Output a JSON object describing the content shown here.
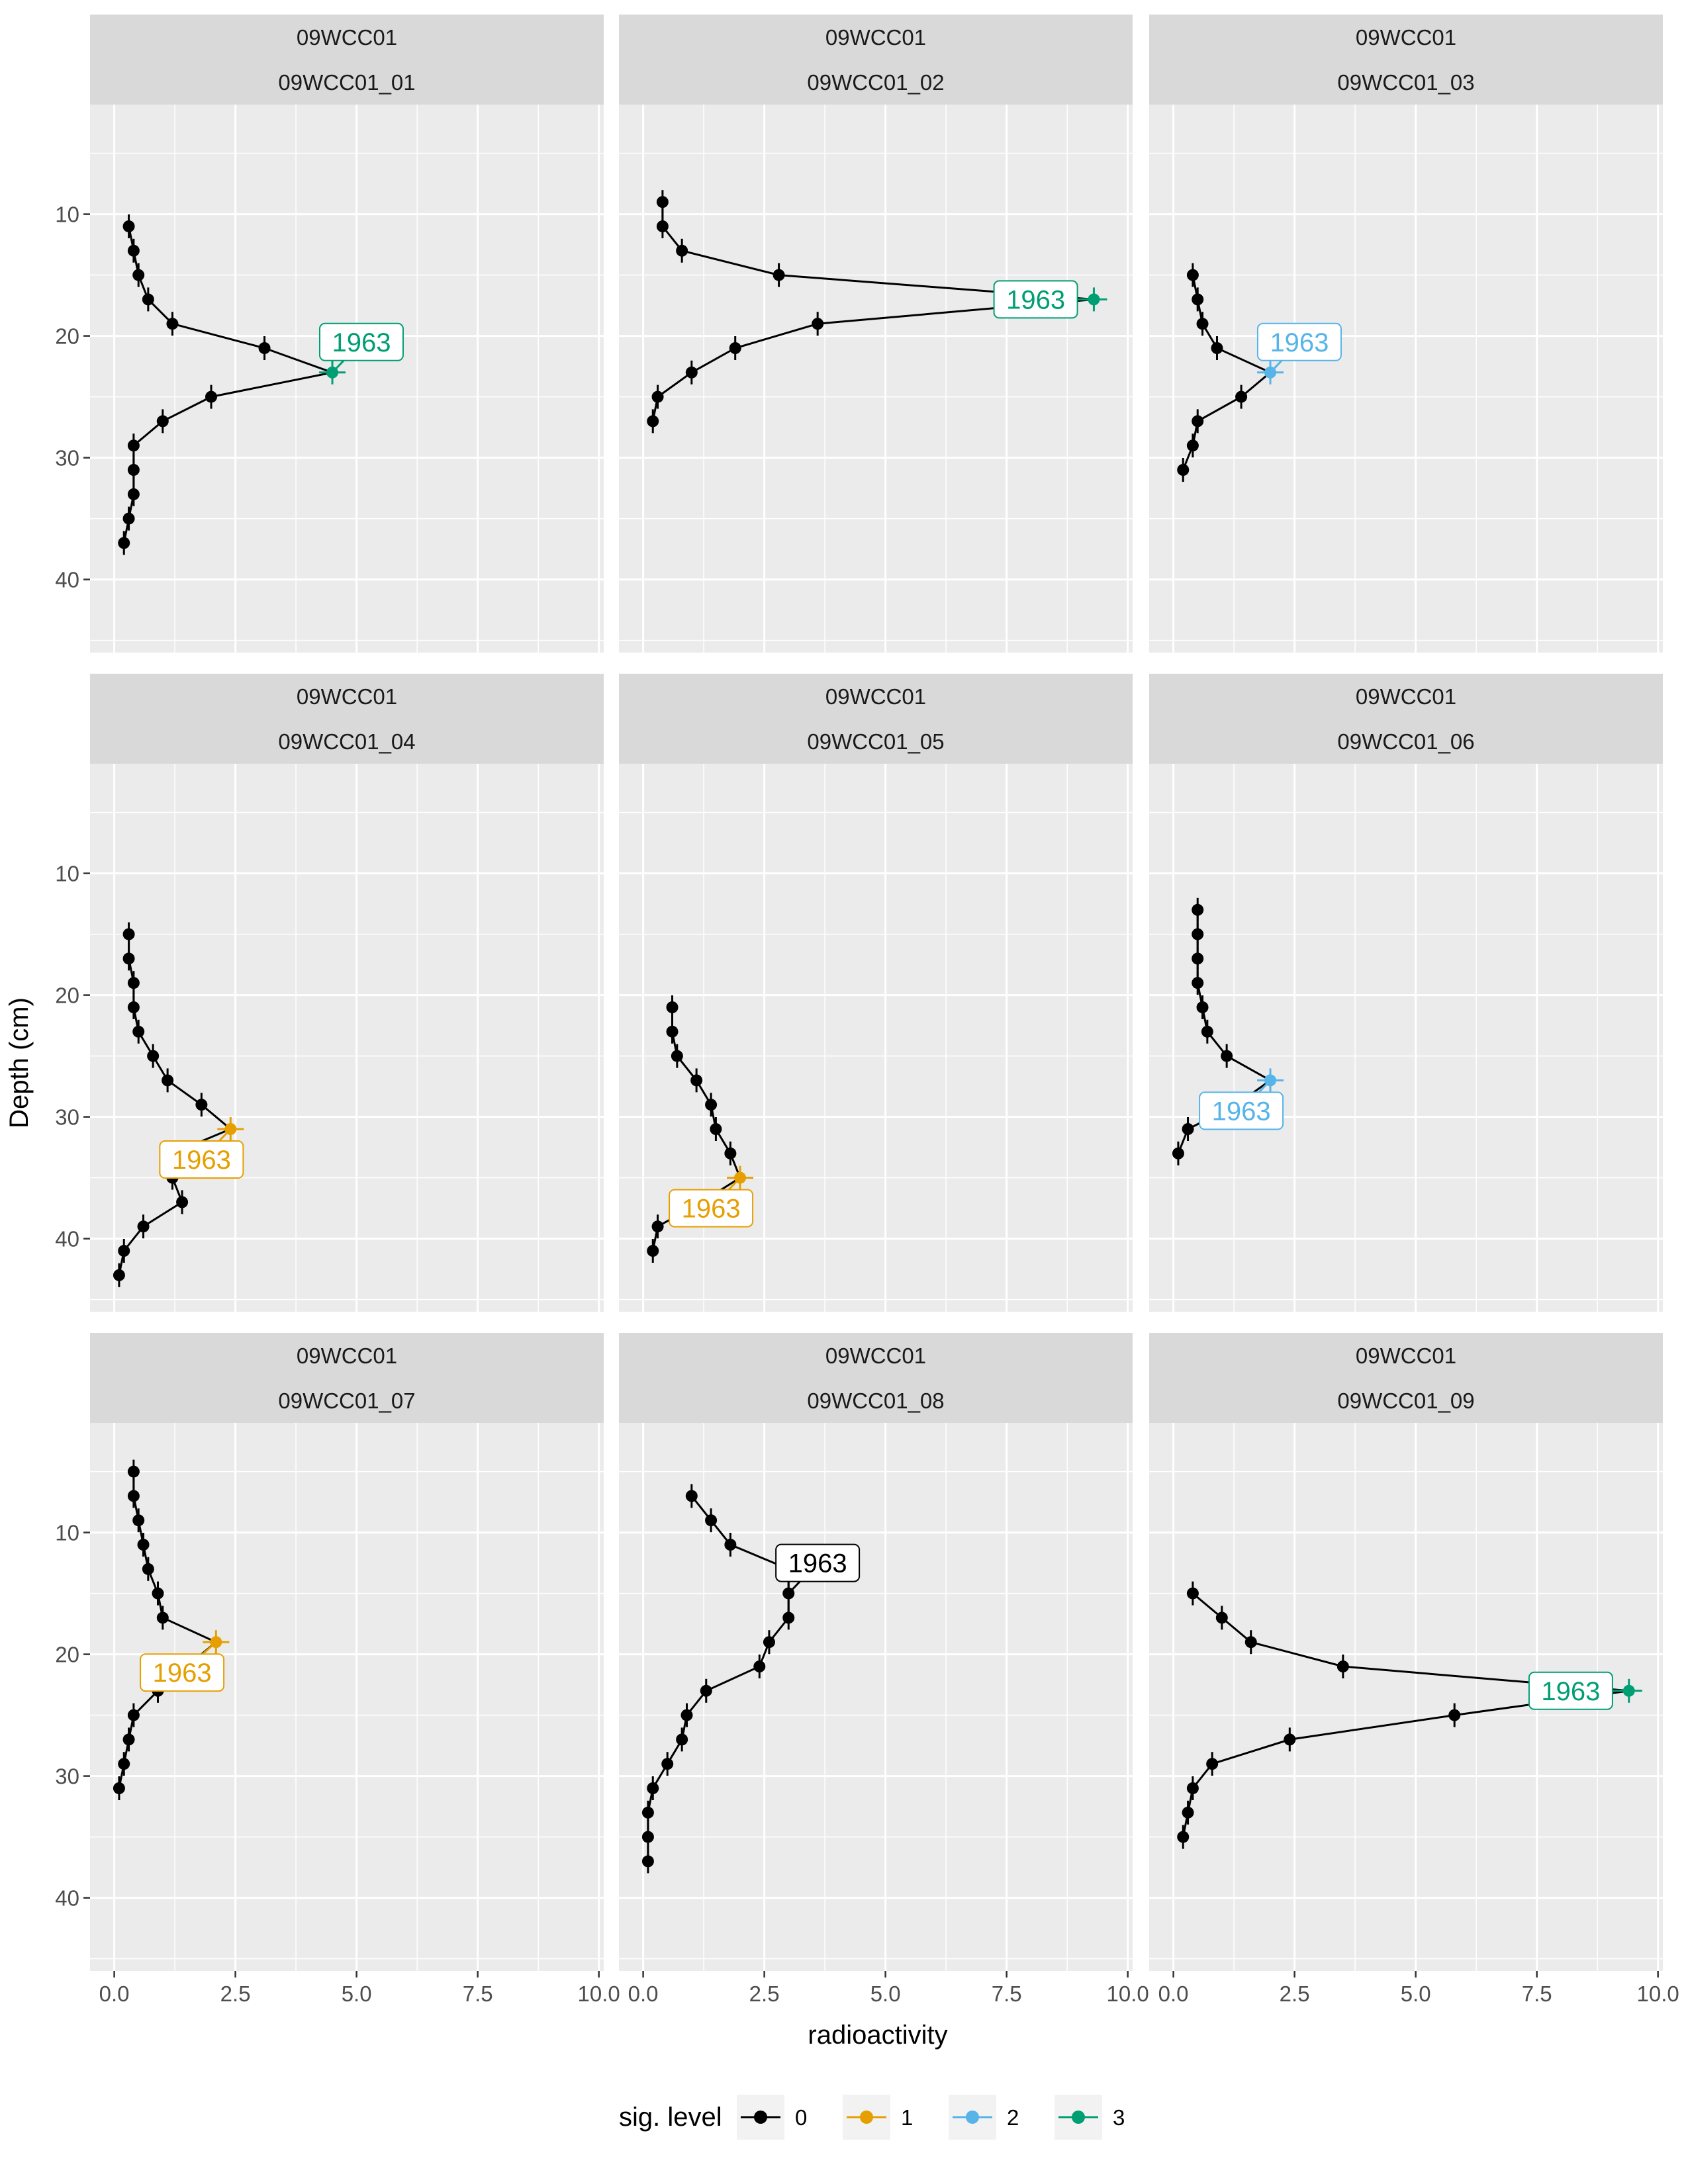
{
  "chart_data": {
    "type": "line",
    "xlabel": "radioactivity",
    "ylabel": "Depth (cm)",
    "xlim": [
      -0.5,
      10.1
    ],
    "ylim": [
      46,
      1
    ],
    "y_reversed": true,
    "xticks": [
      0,
      2.5,
      5,
      7.5,
      10
    ],
    "xtick_labels": [
      "0.0",
      "2.5",
      "5.0",
      "7.5",
      "10.0"
    ],
    "yticks": [
      10,
      20,
      30,
      40
    ],
    "ytick_labels": [
      "10",
      "20",
      "30",
      "40"
    ],
    "grid": true,
    "legend": {
      "title": "sig. level",
      "position": "bottom",
      "levels": [
        "0",
        "1",
        "2",
        "3"
      ]
    },
    "colors": {
      "0": "#000000",
      "1": "#E69F00",
      "2": "#56B4E9",
      "3": "#009E73"
    },
    "panels": [
      {
        "strip_top": "09WCC01",
        "strip_bottom": "09WCC01_01",
        "label": {
          "text": "1963",
          "level": "3",
          "x": 5.1,
          "y": 20.5,
          "point": [
            4.5,
            23
          ]
        },
        "points": [
          {
            "x": 0.3,
            "y": 11,
            "sig": "0"
          },
          {
            "x": 0.4,
            "y": 13,
            "sig": "0"
          },
          {
            "x": 0.5,
            "y": 15,
            "sig": "0"
          },
          {
            "x": 0.7,
            "y": 17,
            "sig": "0"
          },
          {
            "x": 1.2,
            "y": 19,
            "sig": "0"
          },
          {
            "x": 3.1,
            "y": 21,
            "sig": "0"
          },
          {
            "x": 4.5,
            "y": 23,
            "sig": "3"
          },
          {
            "x": 2.0,
            "y": 25,
            "sig": "0"
          },
          {
            "x": 1.0,
            "y": 27,
            "sig": "0"
          },
          {
            "x": 0.4,
            "y": 29,
            "sig": "0"
          },
          {
            "x": 0.4,
            "y": 31,
            "sig": "0"
          },
          {
            "x": 0.4,
            "y": 33,
            "sig": "0"
          },
          {
            "x": 0.3,
            "y": 35,
            "sig": "0"
          },
          {
            "x": 0.2,
            "y": 37,
            "sig": "0"
          }
        ]
      },
      {
        "strip_top": "09WCC01",
        "strip_bottom": "09WCC01_02",
        "label": {
          "text": "1963",
          "level": "3",
          "x": 8.1,
          "y": 17,
          "point": [
            9.3,
            17
          ]
        },
        "points": [
          {
            "x": 0.4,
            "y": 9,
            "sig": "0"
          },
          {
            "x": 0.4,
            "y": 11,
            "sig": "0"
          },
          {
            "x": 0.8,
            "y": 13,
            "sig": "0"
          },
          {
            "x": 2.8,
            "y": 15,
            "sig": "0"
          },
          {
            "x": 9.3,
            "y": 17,
            "sig": "3"
          },
          {
            "x": 3.6,
            "y": 19,
            "sig": "0"
          },
          {
            "x": 1.9,
            "y": 21,
            "sig": "0"
          },
          {
            "x": 1.0,
            "y": 23,
            "sig": "0"
          },
          {
            "x": 0.3,
            "y": 25,
            "sig": "0"
          },
          {
            "x": 0.2,
            "y": 27,
            "sig": "0"
          }
        ]
      },
      {
        "strip_top": "09WCC01",
        "strip_bottom": "09WCC01_03",
        "label": {
          "text": "1963",
          "level": "2",
          "x": 2.6,
          "y": 20.5,
          "point": [
            2.0,
            23
          ]
        },
        "points": [
          {
            "x": 0.4,
            "y": 15,
            "sig": "0"
          },
          {
            "x": 0.5,
            "y": 17,
            "sig": "0"
          },
          {
            "x": 0.6,
            "y": 19,
            "sig": "0"
          },
          {
            "x": 0.9,
            "y": 21,
            "sig": "0"
          },
          {
            "x": 2.0,
            "y": 23,
            "sig": "2"
          },
          {
            "x": 1.4,
            "y": 25,
            "sig": "0"
          },
          {
            "x": 0.5,
            "y": 27,
            "sig": "0"
          },
          {
            "x": 0.4,
            "y": 29,
            "sig": "0"
          },
          {
            "x": 0.2,
            "y": 31,
            "sig": "0"
          }
        ]
      },
      {
        "strip_top": "09WCC01",
        "strip_bottom": "09WCC01_04",
        "label": {
          "text": "1963",
          "level": "1",
          "x": 1.8,
          "y": 33.5,
          "point": [
            2.4,
            31
          ]
        },
        "points": [
          {
            "x": 0.3,
            "y": 15,
            "sig": "0"
          },
          {
            "x": 0.3,
            "y": 17,
            "sig": "0"
          },
          {
            "x": 0.4,
            "y": 19,
            "sig": "0"
          },
          {
            "x": 0.4,
            "y": 21,
            "sig": "0"
          },
          {
            "x": 0.5,
            "y": 23,
            "sig": "0"
          },
          {
            "x": 0.8,
            "y": 25,
            "sig": "0"
          },
          {
            "x": 1.1,
            "y": 27,
            "sig": "0"
          },
          {
            "x": 1.8,
            "y": 29,
            "sig": "0"
          },
          {
            "x": 2.4,
            "y": 31,
            "sig": "1"
          },
          {
            "x": 1.2,
            "y": 33,
            "sig": "0"
          },
          {
            "x": 1.2,
            "y": 35,
            "sig": "0"
          },
          {
            "x": 1.4,
            "y": 37,
            "sig": "0"
          },
          {
            "x": 0.6,
            "y": 39,
            "sig": "0"
          },
          {
            "x": 0.2,
            "y": 41,
            "sig": "0"
          },
          {
            "x": 0.1,
            "y": 43,
            "sig": "0"
          }
        ]
      },
      {
        "strip_top": "09WCC01",
        "strip_bottom": "09WCC01_05",
        "label": {
          "text": "1963",
          "level": "1",
          "x": 1.4,
          "y": 37.5,
          "point": [
            2.0,
            35
          ]
        },
        "points": [
          {
            "x": 0.6,
            "y": 21,
            "sig": "0"
          },
          {
            "x": 0.6,
            "y": 23,
            "sig": "0"
          },
          {
            "x": 0.7,
            "y": 25,
            "sig": "0"
          },
          {
            "x": 1.1,
            "y": 27,
            "sig": "0"
          },
          {
            "x": 1.4,
            "y": 29,
            "sig": "0"
          },
          {
            "x": 1.5,
            "y": 31,
            "sig": "0"
          },
          {
            "x": 1.8,
            "y": 33,
            "sig": "0"
          },
          {
            "x": 2.0,
            "y": 35,
            "sig": "1"
          },
          {
            "x": 1.2,
            "y": 37,
            "sig": "0"
          },
          {
            "x": 0.3,
            "y": 39,
            "sig": "0"
          },
          {
            "x": 0.2,
            "y": 41,
            "sig": "0"
          }
        ]
      },
      {
        "strip_top": "09WCC01",
        "strip_bottom": "09WCC01_06",
        "label": {
          "text": "1963",
          "level": "2",
          "x": 1.4,
          "y": 29.5,
          "point": [
            2.0,
            27
          ]
        },
        "points": [
          {
            "x": 0.5,
            "y": 13,
            "sig": "0"
          },
          {
            "x": 0.5,
            "y": 15,
            "sig": "0"
          },
          {
            "x": 0.5,
            "y": 17,
            "sig": "0"
          },
          {
            "x": 0.5,
            "y": 19,
            "sig": "0"
          },
          {
            "x": 0.6,
            "y": 21,
            "sig": "0"
          },
          {
            "x": 0.7,
            "y": 23,
            "sig": "0"
          },
          {
            "x": 1.1,
            "y": 25,
            "sig": "0"
          },
          {
            "x": 2.0,
            "y": 27,
            "sig": "2"
          },
          {
            "x": 1.3,
            "y": 29,
            "sig": "0"
          },
          {
            "x": 0.3,
            "y": 31,
            "sig": "0"
          },
          {
            "x": 0.1,
            "y": 33,
            "sig": "0"
          }
        ]
      },
      {
        "strip_top": "09WCC01",
        "strip_bottom": "09WCC01_07",
        "label": {
          "text": "1963",
          "level": "1",
          "x": 1.4,
          "y": 21.5,
          "point": [
            2.1,
            19
          ]
        },
        "points": [
          {
            "x": 0.4,
            "y": 5,
            "sig": "0"
          },
          {
            "x": 0.4,
            "y": 7,
            "sig": "0"
          },
          {
            "x": 0.5,
            "y": 9,
            "sig": "0"
          },
          {
            "x": 0.6,
            "y": 11,
            "sig": "0"
          },
          {
            "x": 0.7,
            "y": 13,
            "sig": "0"
          },
          {
            "x": 0.9,
            "y": 15,
            "sig": "0"
          },
          {
            "x": 1.0,
            "y": 17,
            "sig": "0"
          },
          {
            "x": 2.1,
            "y": 19,
            "sig": "1"
          },
          {
            "x": 1.5,
            "y": 21,
            "sig": "0"
          },
          {
            "x": 0.9,
            "y": 23,
            "sig": "0"
          },
          {
            "x": 0.4,
            "y": 25,
            "sig": "0"
          },
          {
            "x": 0.3,
            "y": 27,
            "sig": "0"
          },
          {
            "x": 0.2,
            "y": 29,
            "sig": "0"
          },
          {
            "x": 0.1,
            "y": 31,
            "sig": "0"
          }
        ]
      },
      {
        "strip_top": "09WCC01",
        "strip_bottom": "09WCC01_08",
        "label": {
          "text": "1963",
          "level": "0",
          "x": 3.6,
          "y": 12.5,
          "point": [
            3.0,
            15
          ]
        },
        "points": [
          {
            "x": 1.0,
            "y": 7,
            "sig": "0"
          },
          {
            "x": 1.4,
            "y": 9,
            "sig": "0"
          },
          {
            "x": 1.8,
            "y": 11,
            "sig": "0"
          },
          {
            "x": 3.0,
            "y": 13,
            "sig": "0"
          },
          {
            "x": 3.0,
            "y": 15,
            "sig": "0"
          },
          {
            "x": 3.0,
            "y": 17,
            "sig": "0"
          },
          {
            "x": 2.6,
            "y": 19,
            "sig": "0"
          },
          {
            "x": 2.4,
            "y": 21,
            "sig": "0"
          },
          {
            "x": 1.3,
            "y": 23,
            "sig": "0"
          },
          {
            "x": 0.9,
            "y": 25,
            "sig": "0"
          },
          {
            "x": 0.8,
            "y": 27,
            "sig": "0"
          },
          {
            "x": 0.5,
            "y": 29,
            "sig": "0"
          },
          {
            "x": 0.2,
            "y": 31,
            "sig": "0"
          },
          {
            "x": 0.1,
            "y": 33,
            "sig": "0"
          },
          {
            "x": 0.1,
            "y": 35,
            "sig": "0"
          },
          {
            "x": 0.1,
            "y": 37,
            "sig": "0"
          }
        ]
      },
      {
        "strip_top": "09WCC01",
        "strip_bottom": "09WCC01_09",
        "label": {
          "text": "1963",
          "level": "3",
          "x": 8.2,
          "y": 23,
          "point": [
            9.4,
            23
          ]
        },
        "points": [
          {
            "x": 0.4,
            "y": 15,
            "sig": "0"
          },
          {
            "x": 1.0,
            "y": 17,
            "sig": "0"
          },
          {
            "x": 1.6,
            "y": 19,
            "sig": "0"
          },
          {
            "x": 3.5,
            "y": 21,
            "sig": "0"
          },
          {
            "x": 9.4,
            "y": 23,
            "sig": "3"
          },
          {
            "x": 5.8,
            "y": 25,
            "sig": "0"
          },
          {
            "x": 2.4,
            "y": 27,
            "sig": "0"
          },
          {
            "x": 0.8,
            "y": 29,
            "sig": "0"
          },
          {
            "x": 0.4,
            "y": 31,
            "sig": "0"
          },
          {
            "x": 0.3,
            "y": 33,
            "sig": "0"
          },
          {
            "x": 0.2,
            "y": 35,
            "sig": "0"
          }
        ]
      }
    ]
  }
}
